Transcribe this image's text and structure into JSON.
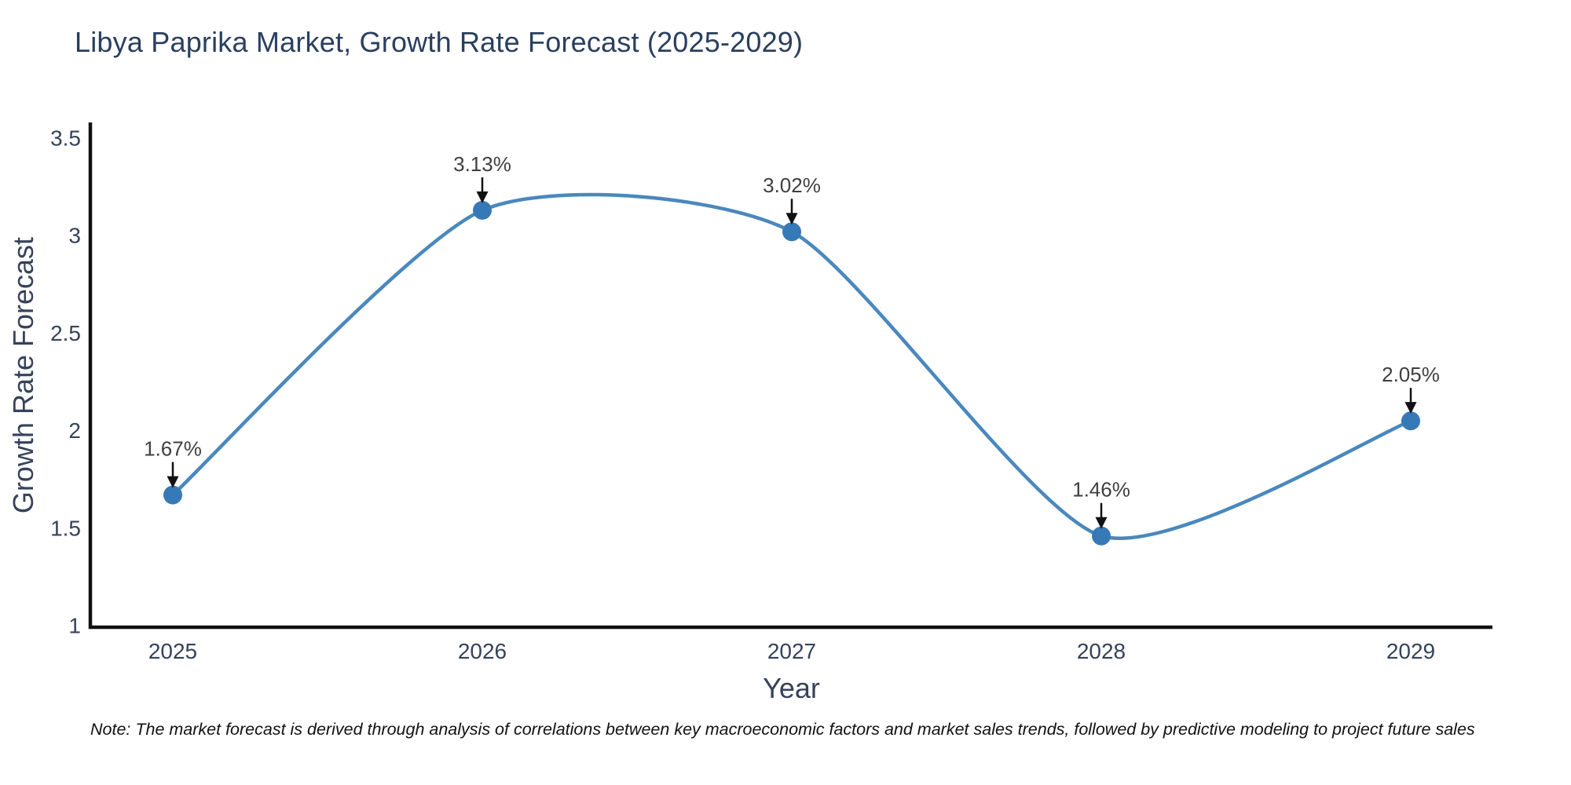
{
  "page": {
    "note": "Note: The market forecast is derived through analysis of correlations between key macroeconomic factors and market sales trends, followed by predictive modeling to project future sales"
  },
  "chart_data": {
    "type": "line",
    "title": "Libya Paprika Market, Growth Rate Forecast (2025-2029)",
    "xlabel": "Year",
    "ylabel": "Growth Rate Forecast",
    "categories": [
      "2025",
      "2026",
      "2027",
      "2028",
      "2029"
    ],
    "values": [
      1.67,
      3.13,
      3.02,
      1.46,
      2.05
    ],
    "point_labels": [
      "1.67%",
      "3.13%",
      "3.02%",
      "1.46%",
      "2.05%"
    ],
    "ylim": [
      1,
      3.5
    ],
    "yticks": [
      3.5,
      3,
      2.5,
      2,
      1.5,
      1
    ],
    "ytick_labels": [
      "3.5",
      "3",
      "2.5",
      "2",
      "1.5",
      "1"
    ],
    "line_shape": "spline",
    "grid": false,
    "legend": false,
    "annotation_style": "label-above-with-down-arrow",
    "colors": {
      "line": "#4a88bd",
      "marker": "#3779b7",
      "axis": "#111111",
      "title_text": "#2a3f5f",
      "axis_text": "#36425a",
      "annotation_text": "#3f3f3f",
      "arrow": "#111111",
      "note_text": "#111111",
      "background": "#ffffff"
    }
  }
}
